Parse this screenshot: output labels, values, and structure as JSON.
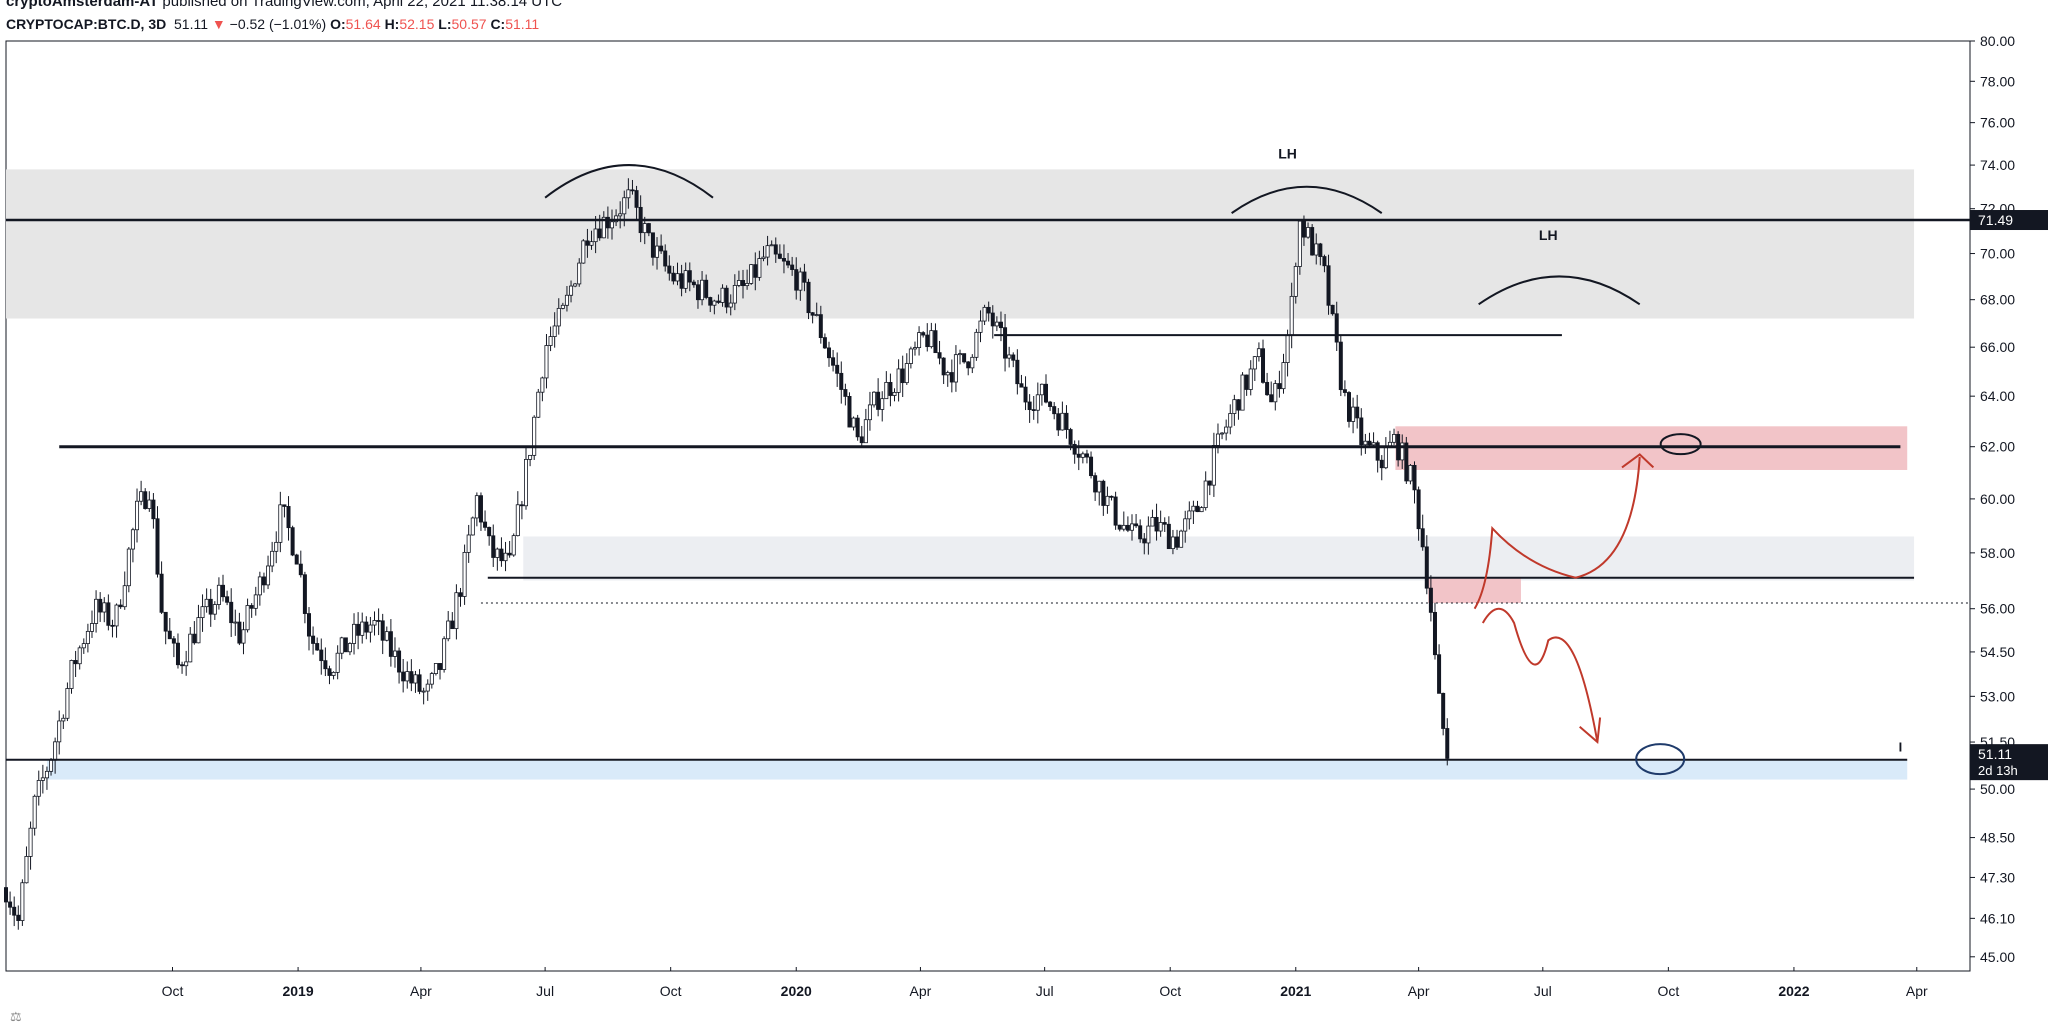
{
  "header": {
    "author": "cryptoAmsterdam-AT",
    "published_text": "published on TradingView.com, April 22, 2021 11:38:14 UTC",
    "symbol": "CRYPTOCAP:BTC.D, 3D",
    "last": "51.11",
    "change_arrow": "▼",
    "change": "−0.52 (−1.01%)",
    "o_label": "O:",
    "o_value": "51.64",
    "h_label": "H:",
    "h_value": "52.15",
    "l_label": "L:",
    "l_value": "50.57",
    "c_label": "C:",
    "c_value": "51.11"
  },
  "colors": {
    "up": "#131722",
    "down": "#131722",
    "gray_zone": "#e6e6e6",
    "light_zone": "#eceef2",
    "pink_zone": "#f2c4c8",
    "blue_zone": "#d9eaf9",
    "annotation_red": "#c0392b",
    "annotation_blue": "#1f3b6b"
  },
  "chart_data": {
    "type": "candlestick",
    "symbol": "CRYPTOCAP:BTC.D",
    "interval": "3D",
    "xlabel": "",
    "ylabel": "",
    "y_scale": "log",
    "ylim": [
      44.6,
      80.0
    ],
    "xlim": [
      "2018-06-01",
      "2022-05-10"
    ],
    "y_ticks": [
      "80.00",
      "78.00",
      "76.00",
      "74.00",
      "72.00",
      "70.00",
      "68.00",
      "66.00",
      "64.00",
      "62.00",
      "60.00",
      "58.00",
      "56.00",
      "54.50",
      "53.00",
      "51.50",
      "50.00",
      "48.50",
      "47.30",
      "46.10",
      "45.00"
    ],
    "x_ticks": [
      {
        "label": "Oct",
        "date": "2018-10-01",
        "bold": false
      },
      {
        "label": "2019",
        "date": "2019-01-01",
        "bold": true
      },
      {
        "label": "Apr",
        "date": "2019-04-01",
        "bold": false
      },
      {
        "label": "Jul",
        "date": "2019-07-01",
        "bold": false
      },
      {
        "label": "Oct",
        "date": "2019-10-01",
        "bold": false
      },
      {
        "label": "2020",
        "date": "2020-01-01",
        "bold": true
      },
      {
        "label": "Apr",
        "date": "2020-04-01",
        "bold": false
      },
      {
        "label": "Jul",
        "date": "2020-07-01",
        "bold": false
      },
      {
        "label": "Oct",
        "date": "2020-10-01",
        "bold": false
      },
      {
        "label": "2021",
        "date": "2021-01-01",
        "bold": true
      },
      {
        "label": "Apr",
        "date": "2021-04-01",
        "bold": false
      },
      {
        "label": "Jul",
        "date": "2021-07-01",
        "bold": false
      },
      {
        "label": "Oct",
        "date": "2021-10-01",
        "bold": false
      },
      {
        "label": "2022",
        "date": "2022-01-01",
        "bold": true
      },
      {
        "label": "Apr",
        "date": "2022-04-01",
        "bold": false
      }
    ],
    "price_path": [
      [
        "2018-06-01",
        47.0
      ],
      [
        "2018-06-10",
        46.0
      ],
      [
        "2018-06-22",
        49.5
      ],
      [
        "2018-07-05",
        51.2
      ],
      [
        "2018-07-20",
        54.0
      ],
      [
        "2018-08-05",
        56.0
      ],
      [
        "2018-08-20",
        55.5
      ],
      [
        "2018-09-05",
        59.5
      ],
      [
        "2018-09-14",
        60.5
      ],
      [
        "2018-09-24",
        55.5
      ],
      [
        "2018-10-05",
        54.0
      ],
      [
        "2018-10-20",
        55.5
      ],
      [
        "2018-11-05",
        56.5
      ],
      [
        "2018-11-20",
        55.0
      ],
      [
        "2018-12-05",
        57.0
      ],
      [
        "2018-12-20",
        59.5
      ],
      [
        "2018-12-31",
        58.0
      ],
      [
        "2019-01-10",
        55.0
      ],
      [
        "2019-01-25",
        54.0
      ],
      [
        "2019-02-10",
        55.0
      ],
      [
        "2019-02-25",
        55.5
      ],
      [
        "2019-03-10",
        54.5
      ],
      [
        "2019-03-25",
        53.5
      ],
      [
        "2019-04-05",
        53.0
      ],
      [
        "2019-04-15",
        54.0
      ],
      [
        "2019-05-01",
        57.0
      ],
      [
        "2019-05-12",
        60.0
      ],
      [
        "2019-05-22",
        58.0
      ],
      [
        "2019-06-05",
        57.5
      ],
      [
        "2019-06-20",
        62.0
      ],
      [
        "2019-07-01",
        66.0
      ],
      [
        "2019-07-15",
        67.5
      ],
      [
        "2019-08-01",
        71.0
      ],
      [
        "2019-08-15",
        71.5
      ],
      [
        "2019-09-01",
        72.5
      ],
      [
        "2019-09-15",
        70.5
      ],
      [
        "2019-10-01",
        69.0
      ],
      [
        "2019-10-20",
        68.5
      ],
      [
        "2019-11-05",
        68.0
      ],
      [
        "2019-11-25",
        68.5
      ],
      [
        "2019-12-10",
        70.0
      ],
      [
        "2020-01-01",
        69.0
      ],
      [
        "2020-01-20",
        66.5
      ],
      [
        "2020-02-05",
        64.0
      ],
      [
        "2020-02-15",
        62.2
      ],
      [
        "2020-03-01",
        64.0
      ],
      [
        "2020-03-20",
        65.0
      ],
      [
        "2020-04-05",
        66.5
      ],
      [
        "2020-04-20",
        65.0
      ],
      [
        "2020-05-05",
        65.5
      ],
      [
        "2020-05-20",
        67.5
      ],
      [
        "2020-06-01",
        66.0
      ],
      [
        "2020-06-15",
        64.0
      ],
      [
        "2020-07-01",
        64.0
      ],
      [
        "2020-07-20",
        62.5
      ],
      [
        "2020-08-05",
        61.0
      ],
      [
        "2020-08-20",
        59.5
      ],
      [
        "2020-09-05",
        58.5
      ],
      [
        "2020-09-20",
        59.0
      ],
      [
        "2020-10-05",
        58.5
      ],
      [
        "2020-10-20",
        59.5
      ],
      [
        "2020-11-05",
        62.0
      ],
      [
        "2020-11-20",
        64.0
      ],
      [
        "2020-12-05",
        65.5
      ],
      [
        "2020-12-15",
        63.5
      ],
      [
        "2020-12-28",
        67.0
      ],
      [
        "2021-01-03",
        71.5
      ],
      [
        "2021-01-12",
        70.5
      ],
      [
        "2021-01-22",
        69.0
      ],
      [
        "2021-02-05",
        64.0
      ],
      [
        "2021-02-20",
        62.0
      ],
      [
        "2021-03-05",
        61.5
      ],
      [
        "2021-03-15",
        62.3
      ],
      [
        "2021-03-28",
        60.5
      ],
      [
        "2021-04-05",
        58.0
      ],
      [
        "2021-04-10",
        56.0
      ],
      [
        "2021-04-15",
        53.0
      ],
      [
        "2021-04-22",
        51.11
      ]
    ]
  },
  "levels": {
    "top_line": "71.49",
    "support_62": "62.00",
    "line_57": "57.10",
    "line_66": "66.50",
    "bottom_line": "50.93",
    "dotted_56": "56.20"
  },
  "price_badge": {
    "top_value": "71.49",
    "bottom_value": "51.11",
    "countdown": "2d 13h"
  },
  "annotations": {
    "lh1": "LH",
    "lh2": "LH",
    "marker": "I"
  },
  "axis_extras": {
    "bottom_left_glyph": "⚖"
  }
}
